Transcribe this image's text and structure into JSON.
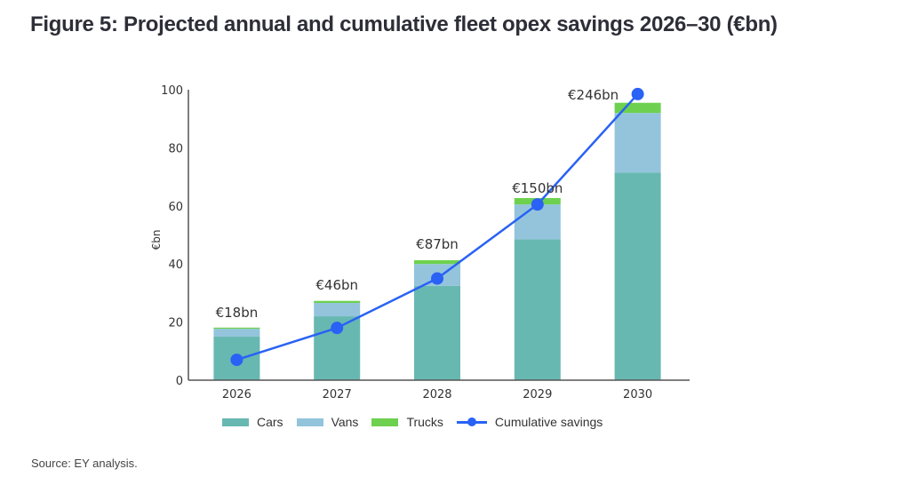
{
  "title": "Figure 5: Projected annual and cumulative fleet opex savings 2026–30 (€bn)",
  "source": "Source: EY analysis.",
  "colors": {
    "cars": "#68b8b2",
    "vans": "#93c4dc",
    "trucks": "#6dd14f",
    "cumulative": "#2962f5",
    "axis": "#555555"
  },
  "legend": {
    "cars": "Cars",
    "vans": "Vans",
    "trucks": "Trucks",
    "cumulative": "Cumulative savings"
  },
  "chart_data": {
    "type": "bar",
    "stacked": true,
    "title": "Figure 5: Projected annual and cumulative fleet opex savings 2026–30 (€bn)",
    "xlabel": "",
    "ylabel": "€bn",
    "ylim": [
      0,
      100
    ],
    "yticks": [
      0,
      20,
      40,
      60,
      80,
      100
    ],
    "grid": false,
    "legend_position": "bottom",
    "categories": [
      "2026",
      "2027",
      "2028",
      "2029",
      "2030"
    ],
    "series": [
      {
        "name": "Cars",
        "type": "bar",
        "values": [
          15,
          22,
          32.5,
          48.5,
          71.5
        ]
      },
      {
        "name": "Vans",
        "type": "bar",
        "values": [
          2.7,
          4.6,
          7.5,
          12,
          20.5
        ]
      },
      {
        "name": "Trucks",
        "type": "bar",
        "values": [
          0.4,
          0.7,
          1.3,
          2.2,
          3.5
        ]
      },
      {
        "name": "Cumulative savings",
        "type": "line",
        "values": [
          7,
          18,
          35,
          60.5,
          98.5
        ]
      }
    ],
    "annotations": [
      "€18bn",
      "€46bn",
      "€87bn",
      "€150bn",
      "€246bn"
    ]
  }
}
